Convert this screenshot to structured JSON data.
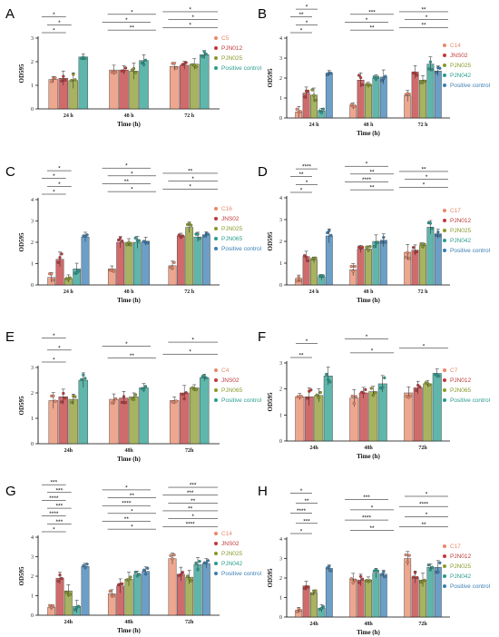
{
  "chart_data": [
    {
      "type": "bar",
      "panel": "A",
      "categories": [
        "24 h",
        "48 h",
        "72 h"
      ],
      "series": [
        {
          "name": "C5",
          "color": "#e8896a",
          "values": [
            1.25,
            1.65,
            1.8
          ]
        },
        {
          "name": "PJN012",
          "color": "#c0393b",
          "values": [
            1.3,
            1.65,
            1.85
          ]
        },
        {
          "name": "PJN025",
          "color": "#8a9a2b",
          "values": [
            1.2,
            1.6,
            1.9
          ]
        },
        {
          "name": "Positive control",
          "color": "#2a9d8f",
          "values": [
            2.2,
            2.05,
            2.3
          ]
        }
      ],
      "ylim": [
        0,
        3
      ],
      "yticks": [
        0,
        1,
        2,
        3
      ],
      "xlabel": "Time (h)",
      "ylabel": "OD595",
      "annotations": [
        "*",
        "**",
        "*",
        "*",
        "*",
        "*",
        "*",
        "*",
        "*"
      ]
    },
    {
      "type": "bar",
      "panel": "B",
      "categories": [
        "24 h",
        "48 h",
        "72 h"
      ],
      "series": [
        {
          "name": "C14",
          "color": "#e8896a",
          "values": [
            0.3,
            0.6,
            1.1
          ]
        },
        {
          "name": "JNS02",
          "color": "#c0393b",
          "values": [
            1.25,
            1.9,
            2.3
          ]
        },
        {
          "name": "PJN025",
          "color": "#8a9a2b",
          "values": [
            1.15,
            1.65,
            1.9
          ]
        },
        {
          "name": "PJN042",
          "color": "#2a9d8f",
          "values": [
            0.35,
            2.0,
            2.7
          ]
        },
        {
          "name": "Positive control",
          "color": "#3a7fb5",
          "values": [
            2.25,
            2.05,
            2.35
          ]
        }
      ],
      "ylim": [
        0,
        4
      ],
      "yticks": [
        0,
        1,
        2,
        3,
        4
      ],
      "xlabel": "Time (h)",
      "ylabel": "OD595",
      "annotations": [
        "*",
        "**",
        "**",
        "*",
        "*",
        "*",
        "**",
        "***",
        "**",
        "*",
        "**",
        "**",
        "**",
        "*",
        "*",
        "*",
        "*"
      ]
    },
    {
      "type": "bar",
      "panel": "C",
      "categories": [
        "24 h",
        "48 h",
        "72 h"
      ],
      "series": [
        {
          "name": "C16",
          "color": "#e8896a",
          "values": [
            0.35,
            0.75,
            0.9
          ]
        },
        {
          "name": "JNS02",
          "color": "#c0393b",
          "values": [
            1.2,
            2.0,
            2.3
          ]
        },
        {
          "name": "PJN025",
          "color": "#8a9a2b",
          "values": [
            0.3,
            2.0,
            2.7
          ]
        },
        {
          "name": "PJN065",
          "color": "#2a9d8f",
          "values": [
            0.75,
            2.0,
            2.25
          ]
        },
        {
          "name": "Positive control",
          "color": "#3a7fb5",
          "values": [
            2.25,
            2.05,
            2.35
          ]
        }
      ],
      "ylim": [
        0,
        4
      ],
      "yticks": [
        0,
        1,
        2,
        3,
        4
      ],
      "xlabel": "Time (h)",
      "ylabel": "OD595",
      "annotations": [
        "*",
        "*",
        "*",
        "*",
        "**",
        "*",
        "*",
        "*",
        "**",
        "*",
        "*"
      ]
    },
    {
      "type": "bar",
      "panel": "D",
      "categories": [
        "24 h",
        "48 h",
        "72 h"
      ],
      "series": [
        {
          "name": "C17",
          "color": "#e8896a",
          "values": [
            0.3,
            0.7,
            1.5
          ]
        },
        {
          "name": "PJN012",
          "color": "#c0393b",
          "values": [
            1.3,
            1.65,
            1.6
          ]
        },
        {
          "name": "PJN025",
          "color": "#8a9a2b",
          "values": [
            1.15,
            1.65,
            1.8
          ]
        },
        {
          "name": "PJN042",
          "color": "#2a9d8f",
          "values": [
            0.35,
            2.0,
            2.65
          ]
        },
        {
          "name": "Positive control",
          "color": "#3a7fb5",
          "values": [
            2.25,
            2.05,
            2.35
          ]
        }
      ],
      "ylim": [
        0,
        4
      ],
      "yticks": [
        0,
        1,
        2,
        3,
        4
      ],
      "xlabel": "Time (h)",
      "ylabel": "OD595",
      "annotations": [
        "*",
        "**",
        "*",
        "*",
        "****",
        "*",
        "**",
        "**",
        "**",
        "****",
        "*",
        "**",
        "*",
        "**",
        "*",
        "*"
      ]
    },
    {
      "type": "bar",
      "panel": "E",
      "categories": [
        "24h",
        "48h",
        "72h"
      ],
      "series": [
        {
          "name": "C4",
          "color": "#e8896a",
          "values": [
            1.7,
            1.75,
            1.7
          ]
        },
        {
          "name": "JNS02",
          "color": "#c0393b",
          "values": [
            1.85,
            1.8,
            2.0
          ]
        },
        {
          "name": "PJN065",
          "color": "#8a9a2b",
          "values": [
            1.75,
            1.85,
            2.2
          ]
        },
        {
          "name": "Positive control",
          "color": "#2a9d8f",
          "values": [
            2.5,
            2.2,
            2.6
          ]
        }
      ],
      "ylim": [
        0,
        3
      ],
      "yticks": [
        0,
        1,
        2,
        3
      ],
      "xlabel": "Time (h)",
      "ylabel": "OD595",
      "annotations": [
        "*",
        "**",
        "*",
        "*",
        "*",
        "*",
        "*"
      ]
    },
    {
      "type": "bar",
      "panel": "F",
      "categories": [
        "24h",
        "48h",
        "72h"
      ],
      "series": [
        {
          "name": "C7",
          "color": "#e8896a",
          "values": [
            1.7,
            1.65,
            1.85
          ]
        },
        {
          "name": "PJN012",
          "color": "#c0393b",
          "values": [
            1.7,
            1.85,
            2.05
          ]
        },
        {
          "name": "PJN065",
          "color": "#8a9a2b",
          "values": [
            1.75,
            1.9,
            2.2
          ]
        },
        {
          "name": "Positive control",
          "color": "#2a9d8f",
          "values": [
            2.5,
            2.2,
            2.6
          ]
        }
      ],
      "ylim": [
        0,
        3
      ],
      "yticks": [
        0,
        1,
        2,
        3
      ],
      "xlabel": "Time (h)",
      "ylabel": "OD595",
      "annotations": [
        "**",
        "*",
        "*",
        "*",
        "*"
      ]
    },
    {
      "type": "bar",
      "panel": "G",
      "categories": [
        "24h",
        "48h",
        "72h"
      ],
      "series": [
        {
          "name": "C14",
          "color": "#e8896a",
          "values": [
            0.4,
            1.1,
            2.9
          ]
        },
        {
          "name": "JNS02",
          "color": "#c0393b",
          "values": [
            1.9,
            1.5,
            2.1
          ]
        },
        {
          "name": "PJN025",
          "color": "#8a9a2b",
          "values": [
            1.25,
            1.85,
            1.95
          ]
        },
        {
          "name": "PJN042",
          "color": "#2a9d8f",
          "values": [
            0.45,
            2.1,
            2.6
          ]
        },
        {
          "name": "Positive control",
          "color": "#3a7fb5",
          "values": [
            2.5,
            2.25,
            2.65
          ]
        }
      ],
      "ylim": [
        0,
        4
      ],
      "yticks": [
        0,
        1,
        2,
        3,
        4
      ],
      "xlabel": "Time (h)",
      "ylabel": "OD595",
      "annotations": [
        "*",
        "*",
        "****",
        "***",
        "**",
        "*",
        "****",
        "*",
        "**",
        "***",
        "****",
        "**",
        "****",
        "**",
        "***",
        "***",
        "*",
        "***",
        "***",
        "**",
        "*",
        "*",
        "**",
        "***",
        "*"
      ]
    },
    {
      "type": "bar",
      "panel": "H",
      "categories": [
        "24h",
        "48h",
        "72h"
      ],
      "series": [
        {
          "name": "C17",
          "color": "#e8896a",
          "values": [
            0.35,
            1.95,
            3.0
          ]
        },
        {
          "name": "PJN012",
          "color": "#c0393b",
          "values": [
            1.6,
            1.9,
            2.05
          ]
        },
        {
          "name": "PJN025",
          "color": "#8a9a2b",
          "values": [
            1.25,
            1.9,
            1.9
          ]
        },
        {
          "name": "PJN042",
          "color": "#2a9d8f",
          "values": [
            0.45,
            2.25,
            2.55
          ]
        },
        {
          "name": "Positive control",
          "color": "#3a7fb5",
          "values": [
            2.5,
            2.2,
            2.55
          ]
        }
      ],
      "ylim": [
        0,
        4
      ],
      "yticks": [
        0,
        1,
        2,
        3,
        4
      ],
      "xlabel": "Time (h)",
      "ylabel": "OD595",
      "annotations": [
        "*",
        "**",
        "**",
        "***",
        "****",
        "*",
        "****",
        "*",
        "****",
        "**",
        "***",
        "*",
        "*"
      ]
    }
  ]
}
